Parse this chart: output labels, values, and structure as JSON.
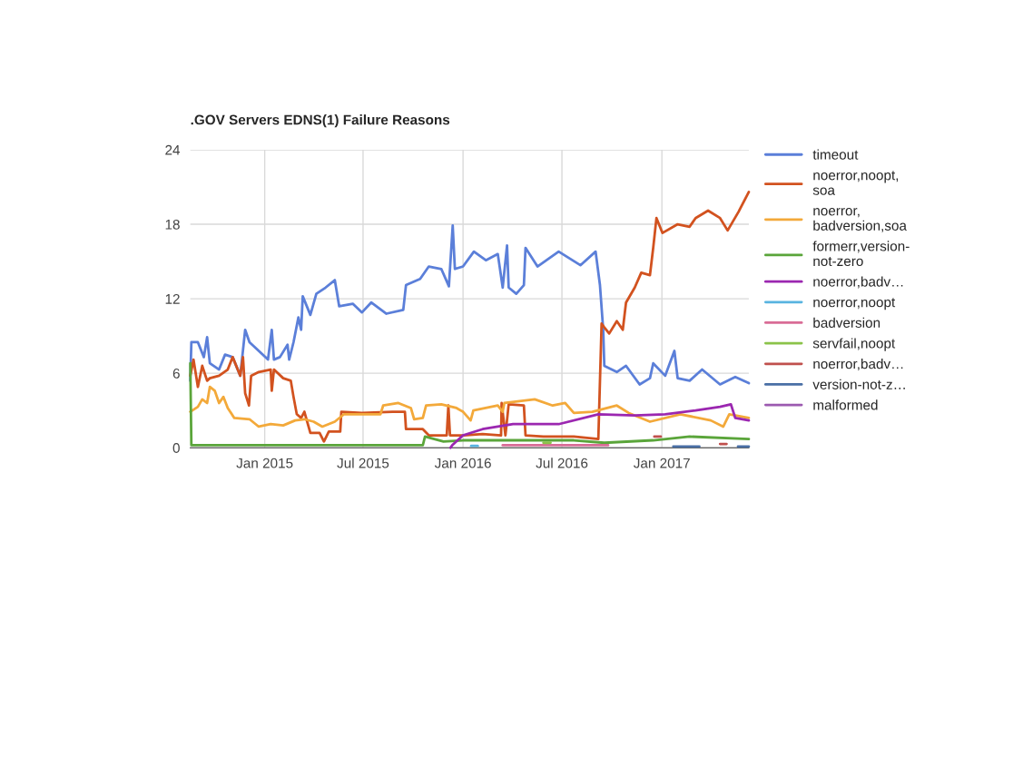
{
  "chart_data": {
    "type": "line",
    "title": ".GOV Servers EDNS(1) Failure Reasons",
    "xlim": [
      "2014-08-17",
      "2017-06-10"
    ],
    "xticks": [
      {
        "value": "2015-01-01",
        "label": "Jan 2015"
      },
      {
        "value": "2015-07-01",
        "label": "Jul 2015"
      },
      {
        "value": "2016-01-01",
        "label": "Jan 2016"
      },
      {
        "value": "2016-07-01",
        "label": "Jul 2016"
      },
      {
        "value": "2017-01-01",
        "label": "Jan 2017"
      }
    ],
    "ylim": [
      0,
      24
    ],
    "yticks": [
      0,
      6,
      12,
      18,
      24
    ],
    "grid": true,
    "legend": "right",
    "marker": "none",
    "line_style": "solid",
    "series": [
      {
        "name": "timeout",
        "color": "#5b7fd9",
        "x": [
          "2014-08-17",
          "2014-08-19",
          "2014-08-31",
          "2014-09-11",
          "2014-09-17",
          "2014-09-22",
          "2014-10-09",
          "2014-10-20",
          "2014-11-03",
          "2014-11-17",
          "2014-11-26",
          "2014-12-04",
          "2014-12-21",
          "2015-01-07",
          "2015-01-14",
          "2015-01-18",
          "2015-01-29",
          "2015-02-12",
          "2015-02-15",
          "2015-02-23",
          "2015-03-04",
          "2015-03-09",
          "2015-03-12",
          "2015-03-26",
          "2015-04-06",
          "2015-04-23",
          "2015-05-10",
          "2015-05-18",
          "2015-06-12",
          "2015-06-29",
          "2015-07-16",
          "2015-08-13",
          "2015-09-13",
          "2015-09-18",
          "2015-10-14",
          "2015-10-30",
          "2015-11-22",
          "2015-12-06",
          "2015-12-13",
          "2015-12-17",
          "2016-01-01",
          "2016-01-21",
          "2016-02-12",
          "2016-03-05",
          "2016-03-14",
          "2016-03-22",
          "2016-03-25",
          "2016-04-08",
          "2016-04-22",
          "2016-04-25",
          "2016-05-17",
          "2016-06-25",
          "2016-08-04",
          "2016-09-01",
          "2016-09-09",
          "2016-09-15",
          "2016-09-17",
          "2016-10-10",
          "2016-10-27",
          "2016-11-21",
          "2016-12-10",
          "2016-12-16",
          "2017-01-07",
          "2017-01-24",
          "2017-01-30",
          "2017-02-21",
          "2017-03-16",
          "2017-04-18",
          "2017-05-16",
          "2017-06-10"
        ],
        "values": [
          5.4,
          8.5,
          8.5,
          7.3,
          8.9,
          6.8,
          6.3,
          7.5,
          7.3,
          5.8,
          9.5,
          8.5,
          7.8,
          7.1,
          9.5,
          7.1,
          7.3,
          8.3,
          7.1,
          8.5,
          10.5,
          9.5,
          12.2,
          10.7,
          12.4,
          12.9,
          13.5,
          11.4,
          11.6,
          10.9,
          11.7,
          10.8,
          11.1,
          13.1,
          13.6,
          14.6,
          14.4,
          13.0,
          17.9,
          14.4,
          14.6,
          15.8,
          15.1,
          15.6,
          12.9,
          16.3,
          12.9,
          12.4,
          13.1,
          16.1,
          14.6,
          15.8,
          14.7,
          15.8,
          13.1,
          9.5,
          6.6,
          6.1,
          6.6,
          5.1,
          5.6,
          6.8,
          5.8,
          7.8,
          5.6,
          5.4,
          6.3,
          5.1,
          5.7,
          5.2
        ]
      },
      {
        "name": "noerror,noopt,soa",
        "color": "#d2521f",
        "x": [
          "2014-08-17",
          "2014-08-23",
          "2014-08-31",
          "2014-09-08",
          "2014-09-17",
          "2014-09-22",
          "2014-10-09",
          "2014-10-25",
          "2014-11-03",
          "2014-11-17",
          "2014-11-22",
          "2014-11-26",
          "2014-12-03",
          "2014-12-07",
          "2014-12-21",
          "2015-01-12",
          "2015-01-14",
          "2015-01-18",
          "2015-02-04",
          "2015-02-18",
          "2015-02-23",
          "2015-03-01",
          "2015-03-09",
          "2015-03-15",
          "2015-03-26",
          "2015-04-12",
          "2015-04-20",
          "2015-04-29",
          "2015-05-20",
          "2015-05-22",
          "2015-06-29",
          "2015-08-24",
          "2015-09-16",
          "2015-09-18",
          "2015-10-19",
          "2015-10-30",
          "2015-12-02",
          "2015-12-05",
          "2015-12-08",
          "2016-01-01",
          "2016-02-06",
          "2016-03-11",
          "2016-03-12",
          "2016-03-19",
          "2016-03-25",
          "2016-04-22",
          "2016-04-25",
          "2016-05-28",
          "2016-07-23",
          "2016-09-06",
          "2016-09-12",
          "2016-09-17",
          "2016-09-26",
          "2016-10-10",
          "2016-10-21",
          "2016-10-27",
          "2016-11-12",
          "2016-11-24",
          "2016-12-10",
          "2016-12-16",
          "2016-12-22",
          "2017-01-02",
          "2017-01-30",
          "2017-02-21",
          "2017-03-04",
          "2017-03-27",
          "2017-04-18",
          "2017-05-02",
          "2017-05-22",
          "2017-06-10"
        ],
        "values": [
          5.8,
          7.1,
          4.9,
          6.6,
          5.4,
          5.6,
          5.8,
          6.3,
          7.3,
          5.8,
          7.3,
          4.4,
          3.4,
          5.8,
          6.1,
          6.3,
          4.6,
          6.3,
          5.6,
          5.4,
          4.1,
          2.7,
          2.4,
          2.9,
          1.2,
          1.2,
          0.5,
          1.3,
          1.3,
          2.9,
          2.8,
          2.9,
          2.9,
          1.5,
          1.5,
          1.0,
          1.0,
          3.4,
          1.0,
          1.0,
          1.1,
          1.0,
          3.6,
          1.0,
          3.5,
          3.4,
          1.0,
          0.9,
          0.9,
          0.7,
          10.0,
          9.7,
          9.2,
          10.2,
          9.5,
          11.7,
          12.9,
          14.1,
          13.9,
          16.1,
          18.5,
          17.3,
          18.0,
          17.8,
          18.5,
          19.1,
          18.5,
          17.5,
          19.0,
          20.6
        ]
      },
      {
        "name": "noerror,badversion,soa",
        "color": "#f3a93a",
        "x": [
          "2014-08-17",
          "2014-08-31",
          "2014-09-08",
          "2014-09-17",
          "2014-09-22",
          "2014-10-01",
          "2014-10-09",
          "2014-10-17",
          "2014-10-25",
          "2014-11-06",
          "2014-12-04",
          "2014-12-21",
          "2015-01-12",
          "2015-02-04",
          "2015-02-26",
          "2015-03-15",
          "2015-04-01",
          "2015-04-17",
          "2015-05-10",
          "2015-05-27",
          "2015-06-29",
          "2015-08-02",
          "2015-08-07",
          "2015-09-04",
          "2015-09-27",
          "2015-10-03",
          "2015-10-19",
          "2015-10-25",
          "2015-11-22",
          "2015-12-20",
          "2016-01-01",
          "2016-01-15",
          "2016-01-20",
          "2016-03-05",
          "2016-03-14",
          "2016-03-17",
          "2016-05-12",
          "2016-06-14",
          "2016-07-07",
          "2016-07-23",
          "2016-08-26",
          "2016-10-10",
          "2016-11-01",
          "2016-12-10",
          "2017-02-04",
          "2017-04-01",
          "2017-04-24",
          "2017-05-05",
          "2017-06-10"
        ],
        "values": [
          2.9,
          3.3,
          3.9,
          3.6,
          4.9,
          4.6,
          3.6,
          4.1,
          3.2,
          2.4,
          2.3,
          1.7,
          1.9,
          1.8,
          2.2,
          2.3,
          2.1,
          1.7,
          2.1,
          2.7,
          2.7,
          2.7,
          3.4,
          3.6,
          3.2,
          2.3,
          2.4,
          3.4,
          3.5,
          3.2,
          2.9,
          2.2,
          3.0,
          3.4,
          2.9,
          3.6,
          3.9,
          3.4,
          3.6,
          2.8,
          2.9,
          3.4,
          2.8,
          2.1,
          2.7,
          2.2,
          1.7,
          2.7,
          2.4
        ]
      },
      {
        "name": "formerr,version-not-zero",
        "color": "#5aa53a",
        "x": [
          "2014-08-17",
          "2014-08-19",
          "2015-03-26",
          "2015-10-19",
          "2015-10-23",
          "2015-11-26",
          "2016-01-01",
          "2016-07-23",
          "2016-09-17",
          "2016-12-16",
          "2017-02-21",
          "2017-06-10"
        ],
        "values": [
          6.8,
          0.2,
          0.2,
          0.2,
          0.9,
          0.5,
          0.6,
          0.6,
          0.4,
          0.6,
          0.9,
          0.7
        ]
      },
      {
        "name": "noerror,badv…",
        "color": "#9b27b0",
        "x": [
          "2015-12-09",
          "2015-12-12",
          "2016-01-01",
          "2016-02-06",
          "2016-04-02",
          "2016-06-25",
          "2016-09-06",
          "2016-11-12",
          "2017-01-07",
          "2017-03-04",
          "2017-04-18",
          "2017-05-08",
          "2017-05-16",
          "2017-06-10"
        ],
        "values": [
          0.0,
          0.2,
          1.0,
          1.5,
          1.9,
          1.9,
          2.7,
          2.6,
          2.7,
          3.0,
          3.3,
          3.5,
          2.4,
          2.2
        ]
      },
      {
        "name": "noerror,noopt",
        "color": "#58b4e0",
        "x": [
          "2016-01-16",
          "2016-01-28"
        ],
        "values": [
          0.15,
          0.15
        ]
      },
      {
        "name": "badversion",
        "color": "#d96c96",
        "x": [
          "2016-03-14",
          "2016-09-24"
        ],
        "values": [
          0.2,
          0.2
        ]
      },
      {
        "name": "servfail,noopt",
        "color": "#8bc34a",
        "x": [
          "2016-05-28",
          "2016-06-10"
        ],
        "values": [
          0.4,
          0.4
        ]
      },
      {
        "name": "noerror,badv…",
        "color": "#c0504d",
        "x": [
          "2016-12-18",
          "2016-12-30",
          "2017-01-01",
          "2017-04-18",
          "2017-04-30"
        ],
        "values": [
          0.9,
          0.9,
          null,
          0.3,
          0.3
        ]
      },
      {
        "name": "version-not-z…",
        "color": "#4a6fa5",
        "x": [
          "2017-01-22",
          "2017-03-11",
          "2017-03-15",
          "2017-05-21",
          "2017-06-10"
        ],
        "values": [
          0.1,
          0.1,
          null,
          0.1,
          0.1
        ]
      },
      {
        "name": "malformed",
        "color": "#9c5ab0"
      }
    ]
  }
}
